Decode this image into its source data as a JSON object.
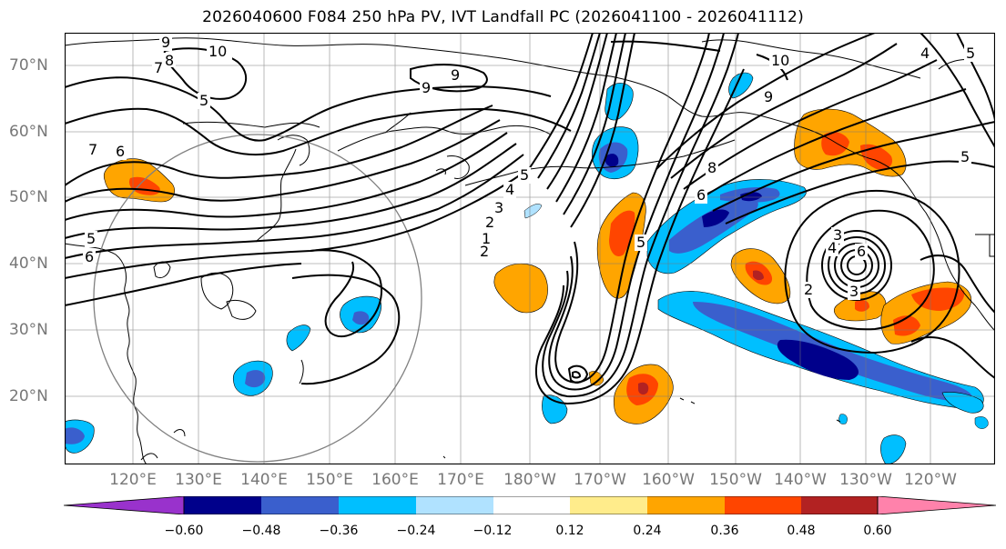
{
  "title": "2026040600 F084 250 hPa PV, IVT Landfall PC (2026041100 - 2026041112)",
  "lat_labels": [
    "70°N",
    "60°N",
    "50°N",
    "40°N",
    "30°N",
    "20°N"
  ],
  "lon_labels": [
    "120°E",
    "130°E",
    "140°E",
    "150°E",
    "160°E",
    "170°E",
    "180°W",
    "170°W",
    "160°W",
    "150°W",
    "140°W",
    "130°W",
    "120°W"
  ],
  "contour_labels": [
    "10",
    "9",
    "8",
    "7",
    "5",
    "9",
    "9",
    "7",
    "6",
    "5",
    "6",
    "5",
    "4",
    "3",
    "2",
    "1",
    "2",
    "5",
    "6",
    "8",
    "9",
    "10",
    "5",
    "3",
    "4",
    "6",
    "2",
    "3",
    "5",
    "4"
  ],
  "colorbar": {
    "ticks": [
      "−0.60",
      "−0.48",
      "−0.36",
      "−0.24",
      "−0.12",
      "0.12",
      "0.24",
      "0.36",
      "0.48",
      "0.60"
    ],
    "colors": [
      "#9932cc",
      "#00008b",
      "#3a5fcd",
      "#00bfff",
      "#b0e2ff",
      "#ffffff",
      "#ffec8b",
      "#ffa500",
      "#ff4500",
      "#b22222",
      "#ff82ab"
    ]
  }
}
